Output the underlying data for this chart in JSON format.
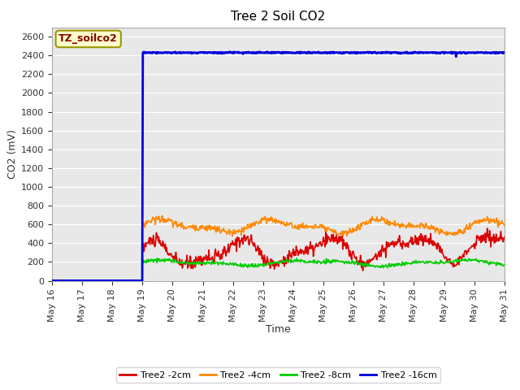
{
  "title": "Tree 2 Soil CO2",
  "ylabel": "CO2 (mV)",
  "xlabel": "Time",
  "xlim_days": [
    16,
    31
  ],
  "ylim": [
    0,
    2700
  ],
  "yticks": [
    0,
    200,
    400,
    600,
    800,
    1000,
    1200,
    1400,
    1600,
    1800,
    2000,
    2200,
    2400,
    2600
  ],
  "xtick_labels": [
    "May 16",
    "May 17",
    "May 18",
    "May 19",
    "May 20",
    "May 21",
    "May 22",
    "May 23",
    "May 24",
    "May 25",
    "May 26",
    "May 27",
    "May 28",
    "May 29",
    "May 30",
    "May 31"
  ],
  "fig_bg_color": "#ffffff",
  "plot_bg_color": "#e8e8e8",
  "grid_color": "#ffffff",
  "legend_label": "TZ_soilco2",
  "legend_box_facecolor": "#ffffcc",
  "legend_box_edgecolor": "#999900",
  "legend_text_color": "#880000",
  "series_colors": {
    "Tree2 -2cm": "#dd0000",
    "Tree2 -4cm": "#ff8800",
    "Tree2 -8cm": "#00cc00",
    "Tree2 -16cm": "#0000dd"
  },
  "series_linewidths": {
    "Tree2 -2cm": 1.2,
    "Tree2 -4cm": 1.2,
    "Tree2 -8cm": 1.2,
    "Tree2 -16cm": 2.0
  },
  "title_fontsize": 11,
  "axis_label_fontsize": 9,
  "tick_fontsize": 8,
  "legend_fontsize": 8
}
